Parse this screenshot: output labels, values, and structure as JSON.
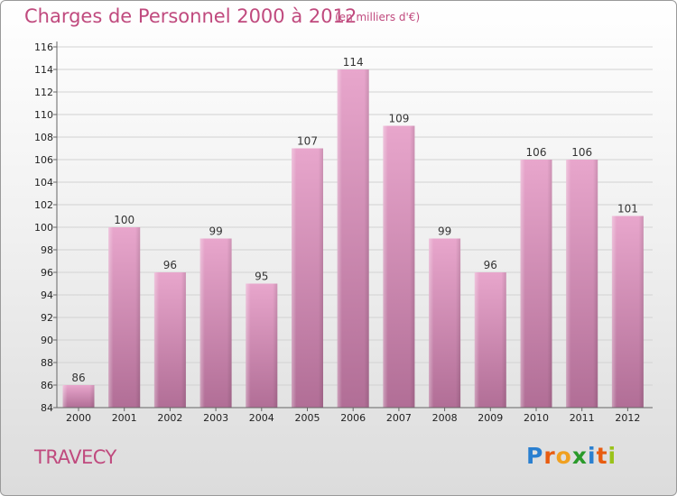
{
  "title": "Charges de Personnel 2000 à 2012",
  "unit": "(en milliers d'€)",
  "commune": "TRAVECY",
  "logo": {
    "text": "Proxiti",
    "letters": [
      {
        "ch": "P",
        "color": "#2a7fd0"
      },
      {
        "ch": "r",
        "color": "#e85c10"
      },
      {
        "ch": "o",
        "color": "#f0a020"
      },
      {
        "ch": "x",
        "color": "#2a9a2a"
      },
      {
        "ch": "i",
        "color": "#2a7fd0"
      },
      {
        "ch": "t",
        "color": "#e85c10"
      },
      {
        "ch": "i",
        "color": "#9ac21a"
      }
    ]
  },
  "colors": {
    "accent": "#c04a7e",
    "bar_top": "#e8a6cc",
    "bar_bottom": "#b16e96"
  },
  "chart_data": {
    "type": "bar",
    "categories": [
      "2000",
      "2001",
      "2002",
      "2003",
      "2004",
      "2005",
      "2006",
      "2007",
      "2008",
      "2009",
      "2010",
      "2011",
      "2012"
    ],
    "values": [
      86,
      100,
      96,
      99,
      95,
      107,
      114,
      109,
      99,
      96,
      106,
      106,
      101
    ],
    "ylim": [
      84,
      116
    ],
    "yticks": [
      84,
      86,
      88,
      90,
      92,
      94,
      96,
      98,
      100,
      102,
      104,
      106,
      108,
      110,
      112,
      114,
      116
    ],
    "grid": true,
    "title": "Charges de Personnel 2000 à 2012",
    "xlabel": "",
    "ylabel": ""
  }
}
